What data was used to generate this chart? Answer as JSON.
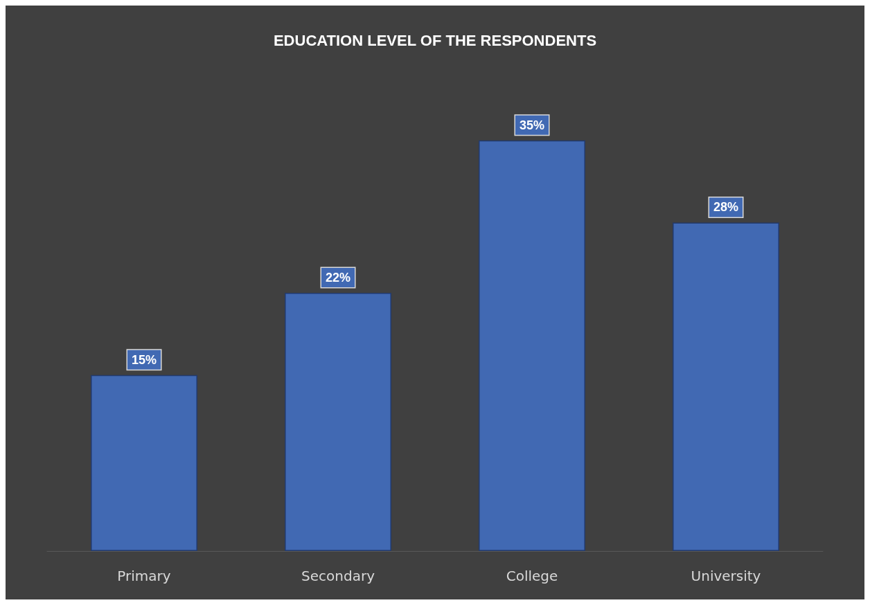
{
  "chart_data": {
    "type": "bar",
    "title": "EDUCATION LEVEL OF THE RESPONDENTS",
    "categories": [
      "Primary",
      "Secondary",
      "College",
      "University"
    ],
    "values": [
      15,
      22,
      35,
      28
    ],
    "value_labels": [
      "15%",
      "22%",
      "35%",
      "28%"
    ],
    "color": "#4169b3"
  }
}
